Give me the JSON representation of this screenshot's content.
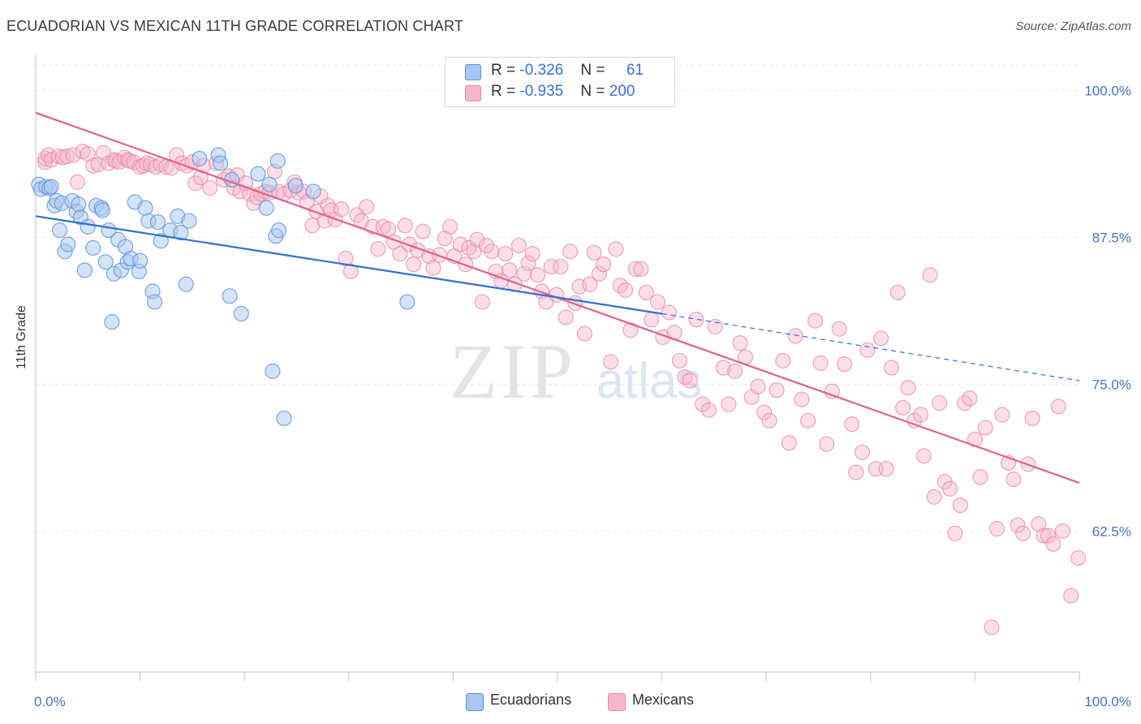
{
  "header": {
    "title": "ECUADORIAN VS MEXICAN 11TH GRADE CORRELATION CHART",
    "source": "Source: ZipAtlas.com"
  },
  "watermark": {
    "zip": "ZIP",
    "atlas": "atlas"
  },
  "legend_top": [
    {
      "r_label": "R = ",
      "r_value": "-0.326",
      "n_label": "N = ",
      "n_value": "61",
      "color": "#a8c6f0"
    },
    {
      "r_label": "R = ",
      "r_value": "-0.935",
      "n_label": "N = ",
      "n_value": "200",
      "color": "#f7b6cb"
    }
  ],
  "legend_bottom": [
    {
      "label": "Ecuadorians",
      "color": "#a8c6f0"
    },
    {
      "label": "Mexicans",
      "color": "#f7b6cb"
    }
  ],
  "chart_data": {
    "type": "scatter",
    "title": "ECUADORIAN VS MEXICAN 11TH GRADE CORRELATION CHART",
    "xlabel": "",
    "ylabel": "11th Grade",
    "xlim": [
      0,
      100
    ],
    "ylim": [
      50.5,
      103
    ],
    "x_tick_labels": [
      "0.0%",
      "100.0%"
    ],
    "y_ticks": [
      100.0,
      87.5,
      75.0,
      62.5
    ],
    "y_tick_labels": [
      "100.0%",
      "87.5%",
      "75.0%",
      "62.5%"
    ],
    "grid": true,
    "legend_position": "top-center",
    "colors": {
      "ecuadorian_fill": "#a8c6f0",
      "ecuadorian_edge": "#5b8fd8",
      "ecuadorian_line": "#2f6fcf",
      "mexican_fill": "#f7b6cb",
      "mexican_edge": "#e587a8",
      "mexican_line": "#e0618e"
    },
    "series": [
      {
        "name": "Ecuadorians",
        "R": -0.326,
        "N": 61,
        "trend": {
          "x": [
            0,
            60
          ],
          "y": [
            89.3,
            81.0
          ],
          "dashed_to": [
            100,
            75.3
          ]
        },
        "points": [
          [
            0.3,
            92.0
          ],
          [
            0.5,
            91.6
          ],
          [
            1.0,
            91.8
          ],
          [
            1.3,
            91.7
          ],
          [
            1.5,
            91.8
          ],
          [
            1.8,
            90.2
          ],
          [
            2.0,
            90.6
          ],
          [
            2.3,
            88.1
          ],
          [
            2.5,
            90.4
          ],
          [
            2.8,
            86.3
          ],
          [
            3.1,
            86.9
          ],
          [
            3.5,
            90.6
          ],
          [
            3.9,
            89.7
          ],
          [
            4.1,
            90.3
          ],
          [
            4.3,
            89.2
          ],
          [
            4.7,
            84.7
          ],
          [
            5.0,
            88.4
          ],
          [
            5.5,
            86.6
          ],
          [
            5.8,
            90.2
          ],
          [
            6.3,
            90.0
          ],
          [
            6.4,
            89.8
          ],
          [
            6.7,
            85.4
          ],
          [
            7.0,
            88.1
          ],
          [
            7.3,
            80.3
          ],
          [
            7.5,
            84.4
          ],
          [
            7.9,
            87.3
          ],
          [
            8.2,
            84.7
          ],
          [
            8.6,
            86.7
          ],
          [
            8.8,
            85.4
          ],
          [
            9.1,
            85.7
          ],
          [
            9.5,
            90.5
          ],
          [
            9.9,
            84.6
          ],
          [
            10.0,
            85.5
          ],
          [
            10.5,
            90.0
          ],
          [
            10.8,
            88.9
          ],
          [
            11.2,
            82.9
          ],
          [
            11.4,
            82.0
          ],
          [
            11.7,
            88.8
          ],
          [
            12.0,
            87.2
          ],
          [
            12.9,
            88.1
          ],
          [
            13.6,
            89.3
          ],
          [
            13.9,
            87.9
          ],
          [
            14.4,
            83.5
          ],
          [
            14.7,
            88.9
          ],
          [
            15.7,
            94.2
          ],
          [
            17.5,
            94.5
          ],
          [
            17.7,
            93.8
          ],
          [
            18.6,
            82.5
          ],
          [
            18.8,
            92.4
          ],
          [
            19.7,
            81.0
          ],
          [
            21.3,
            92.9
          ],
          [
            22.1,
            90.0
          ],
          [
            22.4,
            92.0
          ],
          [
            22.7,
            76.1
          ],
          [
            23.0,
            87.6
          ],
          [
            23.2,
            94.0
          ],
          [
            23.3,
            88.1
          ],
          [
            23.8,
            72.1
          ],
          [
            24.9,
            91.9
          ],
          [
            26.6,
            91.4
          ],
          [
            35.6,
            82.0
          ]
        ]
      },
      {
        "name": "Mexicans",
        "R": -0.935,
        "N": 200,
        "trend": {
          "x": [
            0,
            100
          ],
          "y": [
            98.1,
            66.6
          ]
        },
        "points": [
          [
            0.9,
            93.9
          ],
          [
            0.9,
            94.2
          ],
          [
            1.2,
            94.5
          ],
          [
            1.5,
            94.1
          ],
          [
            2.2,
            94.4
          ],
          [
            2.6,
            94.3
          ],
          [
            3.0,
            94.4
          ],
          [
            3.6,
            94.5
          ],
          [
            4.0,
            92.2
          ],
          [
            4.5,
            94.8
          ],
          [
            5.0,
            94.6
          ],
          [
            5.5,
            93.6
          ],
          [
            6.0,
            93.7
          ],
          [
            6.5,
            94.7
          ],
          [
            7.0,
            93.8
          ],
          [
            7.5,
            94.1
          ],
          [
            7.7,
            94.0
          ],
          [
            8.0,
            93.9
          ],
          [
            8.5,
            94.3
          ],
          [
            8.8,
            94.1
          ],
          [
            9.0,
            94.0
          ],
          [
            9.4,
            93.9
          ],
          [
            10.0,
            93.5
          ],
          [
            10.3,
            93.6
          ],
          [
            10.6,
            93.8
          ],
          [
            11.0,
            93.7
          ],
          [
            11.5,
            93.5
          ],
          [
            12.0,
            93.7
          ],
          [
            12.5,
            93.5
          ],
          [
            13.0,
            93.4
          ],
          [
            13.5,
            94.5
          ],
          [
            14.0,
            93.8
          ],
          [
            14.5,
            93.6
          ],
          [
            15.0,
            93.9
          ],
          [
            15.3,
            92.1
          ],
          [
            15.8,
            92.6
          ],
          [
            16.1,
            93.6
          ],
          [
            16.7,
            91.7
          ],
          [
            17.3,
            93.8
          ],
          [
            18.0,
            92.4
          ],
          [
            18.5,
            92.7
          ],
          [
            19.0,
            91.7
          ],
          [
            19.3,
            92.8
          ],
          [
            19.6,
            91.4
          ],
          [
            20.1,
            92.1
          ],
          [
            20.5,
            91.2
          ],
          [
            20.9,
            90.4
          ],
          [
            21.2,
            90.9
          ],
          [
            21.6,
            91.2
          ],
          [
            22.0,
            91.4
          ],
          [
            22.4,
            91.3
          ],
          [
            22.9,
            93.1
          ],
          [
            23.3,
            91.4
          ],
          [
            23.8,
            91.2
          ],
          [
            24.4,
            91.5
          ],
          [
            24.8,
            92.2
          ],
          [
            25.2,
            91.3
          ],
          [
            25.7,
            91.4
          ],
          [
            26.0,
            90.5
          ],
          [
            26.5,
            88.5
          ],
          [
            26.9,
            89.7
          ],
          [
            27.3,
            91.0
          ],
          [
            27.7,
            88.9
          ],
          [
            28.0,
            90.2
          ],
          [
            28.3,
            89.8
          ],
          [
            28.7,
            89.0
          ],
          [
            29.3,
            89.9
          ],
          [
            29.7,
            85.7
          ],
          [
            30.2,
            84.6
          ],
          [
            30.8,
            89.4
          ],
          [
            31.2,
            88.9
          ],
          [
            31.7,
            90.1
          ],
          [
            32.3,
            88.4
          ],
          [
            32.8,
            86.5
          ],
          [
            33.3,
            88.4
          ],
          [
            33.8,
            88.2
          ],
          [
            34.3,
            87.1
          ],
          [
            34.9,
            86.1
          ],
          [
            35.4,
            88.5
          ],
          [
            35.8,
            86.9
          ],
          [
            36.2,
            85.2
          ],
          [
            36.6,
            86.4
          ],
          [
            37.1,
            88.0
          ],
          [
            37.7,
            85.9
          ],
          [
            38.1,
            84.9
          ],
          [
            38.7,
            86.0
          ],
          [
            39.2,
            87.4
          ],
          [
            39.7,
            88.4
          ],
          [
            40.1,
            85.9
          ],
          [
            40.7,
            86.9
          ],
          [
            41.2,
            85.2
          ],
          [
            41.5,
            86.6
          ],
          [
            42.0,
            86.3
          ],
          [
            42.3,
            87.3
          ],
          [
            42.8,
            82.0
          ],
          [
            43.2,
            86.8
          ],
          [
            43.7,
            86.3
          ],
          [
            44.1,
            84.6
          ],
          [
            44.6,
            83.8
          ],
          [
            45.0,
            86.1
          ],
          [
            45.4,
            84.7
          ],
          [
            45.9,
            83.5
          ],
          [
            46.3,
            86.8
          ],
          [
            46.8,
            84.4
          ],
          [
            47.2,
            85.3
          ],
          [
            47.6,
            86.1
          ],
          [
            48.1,
            84.3
          ],
          [
            48.5,
            82.9
          ],
          [
            48.9,
            82.0
          ],
          [
            49.4,
            85.0
          ],
          [
            49.9,
            82.6
          ],
          [
            50.3,
            85.0
          ],
          [
            50.8,
            80.7
          ],
          [
            51.2,
            86.3
          ],
          [
            51.7,
            81.9
          ],
          [
            52.1,
            83.3
          ],
          [
            52.6,
            79.3
          ],
          [
            53.1,
            83.5
          ],
          [
            53.5,
            86.2
          ],
          [
            54.0,
            84.4
          ],
          [
            54.4,
            85.2
          ],
          [
            55.1,
            76.9
          ],
          [
            55.6,
            86.5
          ],
          [
            56.0,
            83.4
          ],
          [
            56.5,
            83.0
          ],
          [
            57.0,
            79.6
          ],
          [
            57.5,
            84.8
          ],
          [
            58.0,
            84.8
          ],
          [
            58.5,
            82.8
          ],
          [
            59.0,
            80.5
          ],
          [
            59.6,
            82.0
          ],
          [
            60.1,
            79.0
          ],
          [
            60.7,
            81.1
          ],
          [
            61.2,
            79.4
          ],
          [
            61.7,
            77.0
          ],
          [
            62.2,
            75.6
          ],
          [
            62.7,
            75.3
          ],
          [
            63.3,
            80.5
          ],
          [
            63.9,
            73.3
          ],
          [
            64.5,
            72.8
          ],
          [
            65.1,
            79.9
          ],
          [
            65.9,
            76.4
          ],
          [
            66.4,
            73.3
          ],
          [
            67.0,
            76.1
          ],
          [
            67.5,
            78.5
          ],
          [
            68.0,
            77.3
          ],
          [
            68.6,
            73.9
          ],
          [
            69.2,
            74.8
          ],
          [
            69.8,
            72.6
          ],
          [
            70.3,
            71.9
          ],
          [
            71.0,
            74.5
          ],
          [
            71.6,
            77.0
          ],
          [
            72.2,
            70.0
          ],
          [
            72.8,
            79.1
          ],
          [
            73.4,
            73.7
          ],
          [
            74.0,
            71.9
          ],
          [
            74.7,
            80.4
          ],
          [
            75.2,
            76.8
          ],
          [
            75.8,
            69.9
          ],
          [
            76.3,
            74.4
          ],
          [
            77.0,
            79.7
          ],
          [
            77.5,
            76.7
          ],
          [
            78.2,
            71.6
          ],
          [
            78.6,
            67.5
          ],
          [
            79.2,
            69.2
          ],
          [
            79.7,
            77.9
          ],
          [
            80.5,
            67.8
          ],
          [
            81.0,
            78.9
          ],
          [
            81.5,
            67.8
          ],
          [
            82.0,
            76.4
          ],
          [
            82.6,
            82.8
          ],
          [
            83.1,
            73.0
          ],
          [
            83.6,
            74.7
          ],
          [
            84.2,
            71.9
          ],
          [
            84.8,
            72.4
          ],
          [
            85.1,
            68.9
          ],
          [
            85.7,
            84.3
          ],
          [
            86.1,
            65.4
          ],
          [
            86.6,
            73.4
          ],
          [
            87.1,
            66.7
          ],
          [
            87.6,
            66.1
          ],
          [
            88.1,
            62.3
          ],
          [
            88.6,
            64.7
          ],
          [
            89.0,
            73.4
          ],
          [
            89.5,
            73.8
          ],
          [
            90.0,
            70.3
          ],
          [
            90.5,
            67.1
          ],
          [
            91.0,
            71.3
          ],
          [
            91.6,
            54.3
          ],
          [
            92.1,
            62.7
          ],
          [
            92.6,
            72.4
          ],
          [
            93.2,
            68.3
          ],
          [
            93.7,
            66.9
          ],
          [
            94.1,
            63.0
          ],
          [
            94.6,
            62.3
          ],
          [
            95.1,
            68.2
          ],
          [
            95.5,
            72.1
          ],
          [
            96.1,
            63.1
          ],
          [
            96.6,
            62.1
          ],
          [
            97.0,
            62.1
          ],
          [
            97.5,
            61.4
          ],
          [
            98.0,
            73.1
          ],
          [
            98.4,
            62.5
          ],
          [
            99.2,
            57.0
          ],
          [
            99.9,
            60.2
          ]
        ]
      }
    ]
  }
}
